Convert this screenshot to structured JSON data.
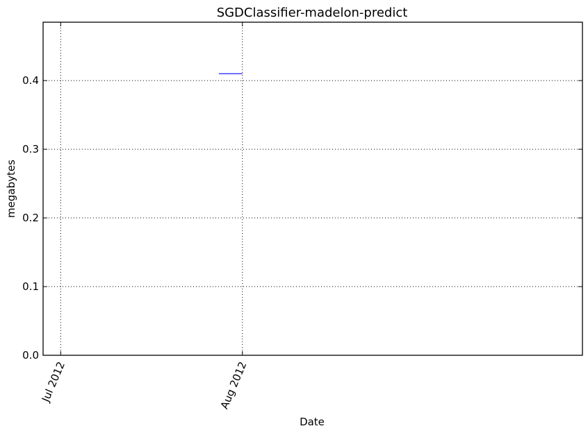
{
  "chart_data": {
    "type": "line",
    "title": "SGDClassifier-madelon-predict",
    "xlabel": "Date",
    "ylabel": "megabytes",
    "x_axis_kind": "date",
    "xlim": [
      "2012-06-28",
      "2012-09-28"
    ],
    "ylim": [
      0,
      0.485
    ],
    "x_ticks": [
      {
        "date": "2012-07-01",
        "label": "Jul 2012"
      },
      {
        "date": "2012-08-01",
        "label": "Aug 2012"
      }
    ],
    "y_ticks": [
      {
        "value": 0.0,
        "label": "0.0"
      },
      {
        "value": 0.1,
        "label": "0.1"
      },
      {
        "value": 0.2,
        "label": "0.2"
      },
      {
        "value": 0.3,
        "label": "0.3"
      },
      {
        "value": 0.4,
        "label": "0.4"
      }
    ],
    "grid": true,
    "series": [
      {
        "color": "#0000ff",
        "points": [
          {
            "x": "2012-07-28",
            "y": 0.41
          },
          {
            "x": "2012-08-01",
            "y": 0.41
          }
        ]
      }
    ]
  }
}
